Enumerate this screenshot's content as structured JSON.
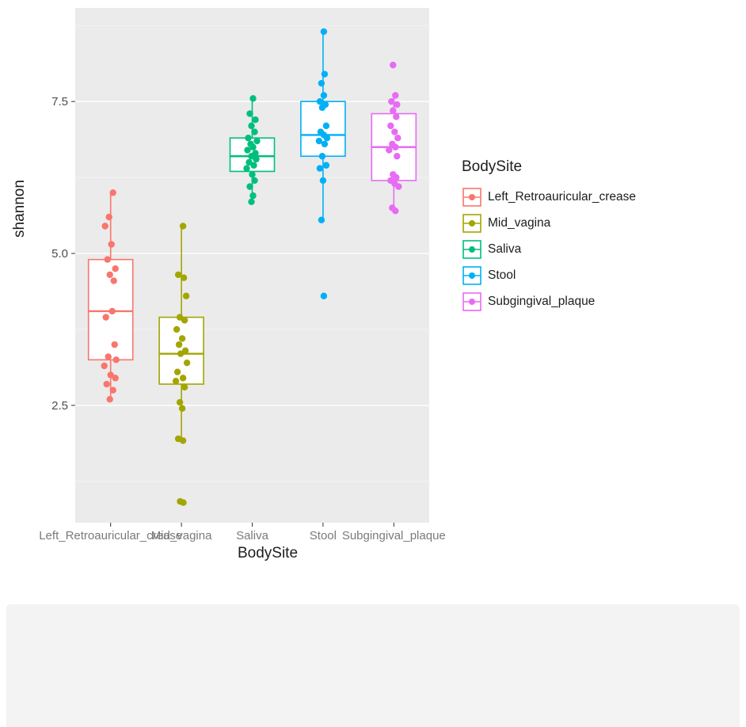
{
  "figure": {
    "ylabel": "shannon",
    "xlabel": "BodySite",
    "legend_title": "BodySite"
  },
  "chart_data": {
    "type": "boxplot",
    "title": "",
    "xlabel": "BodySite",
    "ylabel": "shannon",
    "ylim": [
      0.57,
      9.04
    ],
    "y_ticks": [
      2.5,
      5.0,
      7.5
    ],
    "y_tick_labels": [
      "2.5",
      "5.0",
      "7.5"
    ],
    "grid": true,
    "panel_bg": "#EBEBEB",
    "grid_major_color": "#FFFFFF",
    "grid_minor_color": "#F5F5F5",
    "legend": {
      "title": "BodySite",
      "position": "right"
    },
    "categories": [
      "Left_Retroauricular_crease",
      "Mid_vagina",
      "Saliva",
      "Stool",
      "Subgingival_plaque"
    ],
    "series": [
      {
        "name": "Left_Retroauricular_crease",
        "color": "#F8766D",
        "box": {
          "low": 2.6,
          "q1": 3.25,
          "median": 4.05,
          "q3": 4.9,
          "high": 6.0
        },
        "points": [
          [
            6.0,
            0.15
          ],
          [
            5.6,
            -0.1
          ],
          [
            5.45,
            -0.35
          ],
          [
            5.15,
            0.05
          ],
          [
            4.9,
            -0.2
          ],
          [
            4.75,
            0.3
          ],
          [
            4.65,
            -0.05
          ],
          [
            4.55,
            0.2
          ],
          [
            4.05,
            0.1
          ],
          [
            3.95,
            -0.3
          ],
          [
            3.5,
            0.25
          ],
          [
            3.3,
            -0.15
          ],
          [
            3.25,
            0.35
          ],
          [
            3.15,
            -0.4
          ],
          [
            3.0,
            0.0
          ],
          [
            2.95,
            0.3
          ],
          [
            2.85,
            -0.25
          ],
          [
            2.75,
            0.15
          ],
          [
            2.6,
            -0.05
          ]
        ]
      },
      {
        "name": "Mid_vagina",
        "color": "#A3A500",
        "box": {
          "low": 1.9,
          "q1": 2.85,
          "median": 3.35,
          "q3": 3.95,
          "high": 5.45
        },
        "points": [
          [
            5.45,
            0.1
          ],
          [
            4.65,
            -0.2
          ],
          [
            4.6,
            0.15
          ],
          [
            4.3,
            0.3
          ],
          [
            3.95,
            -0.1
          ],
          [
            3.9,
            0.2
          ],
          [
            3.75,
            -0.3
          ],
          [
            3.6,
            0.05
          ],
          [
            3.5,
            -0.15
          ],
          [
            3.4,
            0.25
          ],
          [
            3.35,
            -0.05
          ],
          [
            3.2,
            0.35
          ],
          [
            3.05,
            -0.25
          ],
          [
            2.95,
            0.1
          ],
          [
            2.9,
            -0.35
          ],
          [
            2.8,
            0.2
          ],
          [
            2.55,
            -0.1
          ],
          [
            2.45,
            0.05
          ],
          [
            1.95,
            -0.2
          ],
          [
            1.92,
            0.1
          ],
          [
            0.92,
            -0.08
          ],
          [
            0.9,
            0.12
          ]
        ]
      },
      {
        "name": "Saliva",
        "color": "#00BF7D",
        "box": {
          "low": 5.85,
          "q1": 6.35,
          "median": 6.6,
          "q3": 6.9,
          "high": 7.55
        },
        "points": [
          [
            7.55,
            0.05
          ],
          [
            7.3,
            -0.15
          ],
          [
            7.2,
            0.2
          ],
          [
            7.1,
            -0.05
          ],
          [
            7.0,
            0.15
          ],
          [
            6.9,
            -0.25
          ],
          [
            6.85,
            0.3
          ],
          [
            6.8,
            -0.1
          ],
          [
            6.75,
            0.05
          ],
          [
            6.7,
            -0.3
          ],
          [
            6.65,
            0.2
          ],
          [
            6.6,
            -0.05
          ],
          [
            6.55,
            0.25
          ],
          [
            6.5,
            -0.2
          ],
          [
            6.45,
            0.1
          ],
          [
            6.4,
            -0.35
          ],
          [
            6.3,
            0.0
          ],
          [
            6.2,
            0.15
          ],
          [
            6.1,
            -0.15
          ],
          [
            5.95,
            0.05
          ],
          [
            5.85,
            -0.05
          ]
        ]
      },
      {
        "name": "Stool",
        "color": "#00B0F6",
        "box": {
          "low": 5.55,
          "q1": 6.6,
          "median": 6.95,
          "q3": 7.5,
          "high": 8.65
        },
        "points": [
          [
            8.65,
            0.05
          ],
          [
            7.95,
            0.1
          ],
          [
            7.8,
            -0.1
          ],
          [
            7.6,
            0.05
          ],
          [
            7.5,
            -0.2
          ],
          [
            7.45,
            0.15
          ],
          [
            7.4,
            -0.05
          ],
          [
            7.1,
            0.2
          ],
          [
            7.0,
            -0.15
          ],
          [
            6.95,
            0.05
          ],
          [
            6.9,
            0.25
          ],
          [
            6.85,
            -0.25
          ],
          [
            6.8,
            0.1
          ],
          [
            6.6,
            -0.05
          ],
          [
            6.45,
            0.2
          ],
          [
            6.4,
            -0.2
          ],
          [
            6.2,
            0.0
          ],
          [
            5.55,
            -0.1
          ],
          [
            4.3,
            0.05
          ]
        ]
      },
      {
        "name": "Subgingival_plaque",
        "color": "#E76BF3",
        "box": {
          "low": 5.7,
          "q1": 6.2,
          "median": 6.75,
          "q3": 7.3,
          "high": 7.6
        },
        "points": [
          [
            8.1,
            -0.05
          ],
          [
            7.6,
            0.1
          ],
          [
            7.5,
            -0.15
          ],
          [
            7.45,
            0.2
          ],
          [
            7.35,
            -0.05
          ],
          [
            7.25,
            0.15
          ],
          [
            7.1,
            -0.2
          ],
          [
            7.0,
            0.05
          ],
          [
            6.9,
            0.25
          ],
          [
            6.8,
            -0.1
          ],
          [
            6.75,
            0.1
          ],
          [
            6.7,
            -0.3
          ],
          [
            6.6,
            0.2
          ],
          [
            6.3,
            -0.05
          ],
          [
            6.25,
            0.15
          ],
          [
            6.2,
            -0.2
          ],
          [
            6.15,
            0.05
          ],
          [
            6.1,
            0.3
          ],
          [
            5.75,
            -0.1
          ],
          [
            5.7,
            0.1
          ]
        ]
      }
    ]
  }
}
